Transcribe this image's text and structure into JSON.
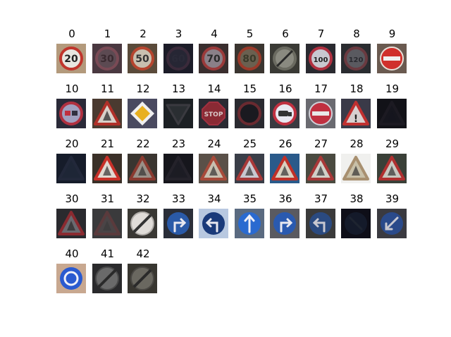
{
  "labels": [
    "0",
    "1",
    "2",
    "3",
    "4",
    "5",
    "6",
    "7",
    "8",
    "9",
    "10",
    "11",
    "12",
    "13",
    "14",
    "15",
    "16",
    "17",
    "18",
    "19",
    "20",
    "21",
    "22",
    "23",
    "24",
    "25",
    "26",
    "27",
    "28",
    "29",
    "30",
    "31",
    "32",
    "33",
    "34",
    "35",
    "36",
    "37",
    "38",
    "39",
    "40",
    "41",
    "42"
  ],
  "thumbnails": [
    {
      "kind": "speed",
      "text": "20",
      "bg": "#b39a7c",
      "sign": "#e8e6e0",
      "ring": "#c0352c",
      "ink": "#222222"
    },
    {
      "kind": "speed",
      "text": "30",
      "bg": "#4a3840",
      "sign": "#5c4a52",
      "ring": "#7a4a55",
      "ink": "#3a2a30"
    },
    {
      "kind": "speed",
      "text": "50",
      "bg": "#5a4a3a",
      "sign": "#c8c0b0",
      "ring": "#b5452f",
      "ink": "#333333"
    },
    {
      "kind": "speed",
      "text": "60",
      "bg": "#1c1c28",
      "sign": "#262634",
      "ring": "#3a2a3a",
      "ink": "#2a2a38"
    },
    {
      "kind": "speed",
      "text": "70",
      "bg": "#3a2e2e",
      "sign": "#8a8088",
      "ring": "#9a3a3a",
      "ink": "#2a2a2a"
    },
    {
      "kind": "speed",
      "text": "80",
      "bg": "#3a3530",
      "sign": "#6a6050",
      "ring": "#9a3a2a",
      "ink": "#3a3a2a"
    },
    {
      "kind": "endspeed",
      "text": "",
      "bg": "#3a3a35",
      "sign": "#8a8a80",
      "ring": "#6a6a60",
      "ink": "#2a2a2a"
    },
    {
      "kind": "speed",
      "text": "100",
      "bg": "#2a2a30",
      "sign": "#c8c8d0",
      "ring": "#b03040",
      "ink": "#222222"
    },
    {
      "kind": "speed",
      "text": "120",
      "bg": "#2a2c30",
      "sign": "#5a5a60",
      "ring": "#6a3a40",
      "ink": "#2a2a30"
    },
    {
      "kind": "noentry",
      "text": "",
      "bg": "#6a5a50",
      "sign": "#d0302c",
      "ring": "#e8e0d8",
      "ink": "#f0f0f0"
    },
    {
      "kind": "nopass",
      "text": "",
      "bg": "#2a2a38",
      "sign": "#a0a0c0",
      "ring": "#b03040",
      "ink": "#303040"
    },
    {
      "kind": "tri",
      "text": "",
      "bg": "#4a3a30",
      "sign": "#d8d0c8",
      "ring": "#b03028",
      "ink": "#222222"
    },
    {
      "kind": "priority",
      "text": "",
      "bg": "#4a4a60",
      "sign": "#f0f0f0",
      "ring": "#e8b020",
      "ink": "#e8b020"
    },
    {
      "kind": "yield",
      "text": "",
      "bg": "#1c2024",
      "sign": "#2a2e32",
      "ring": "#3a3a40",
      "ink": "#2a2e32"
    },
    {
      "kind": "stop",
      "text": "STOP",
      "bg": "#2a2a32",
      "sign": "#8a2a34",
      "ring": "#a03040",
      "ink": "#d8c8c8"
    },
    {
      "kind": "novehicle",
      "text": "",
      "bg": "#2a2a30",
      "sign": "#1a1a20",
      "ring": "#6a2a30",
      "ink": "#1a1a20"
    },
    {
      "kind": "truck",
      "text": "",
      "bg": "#3a3a40",
      "sign": "#e8e8f0",
      "ring": "#c03040",
      "ink": "#333333"
    },
    {
      "kind": "noentry",
      "text": "",
      "bg": "#6a6a70",
      "sign": "#c03040",
      "ring": "#d0d0d8",
      "ink": "#e8e8e8"
    },
    {
      "kind": "tri",
      "text": "!",
      "bg": "#3a3a48",
      "sign": "#d8d0d0",
      "ring": "#c03030",
      "ink": "#222222"
    },
    {
      "kind": "tri",
      "text": "",
      "bg": "#121218",
      "sign": "#16161e",
      "ring": "#1c1a22",
      "ink": "#16161e"
    },
    {
      "kind": "tri",
      "text": "",
      "bg": "#161c2a",
      "sign": "#1e2636",
      "ring": "#22283a",
      "ink": "#1e2636"
    },
    {
      "kind": "tri",
      "text": "",
      "bg": "#3a3028",
      "sign": "#e0d8d0",
      "ring": "#c83028",
      "ink": "#333333"
    },
    {
      "kind": "tri",
      "text": "",
      "bg": "#3a3530",
      "sign": "#9a9088",
      "ring": "#8a3a30",
      "ink": "#333333"
    },
    {
      "kind": "tri",
      "text": "",
      "bg": "#16161c",
      "sign": "#1c1c24",
      "ring": "#24222a",
      "ink": "#1c1c24"
    },
    {
      "kind": "tri",
      "text": "",
      "bg": "#5a5048",
      "sign": "#c8c0b0",
      "ring": "#a84a3a",
      "ink": "#333333"
    },
    {
      "kind": "tri",
      "text": "",
      "bg": "#3a3e48",
      "sign": "#c8c8d0",
      "ring": "#a83838",
      "ink": "#333333"
    },
    {
      "kind": "tri",
      "text": "",
      "bg": "#2a5a8a",
      "sign": "#d8d0c0",
      "ring": "#c03028",
      "ink": "#333333"
    },
    {
      "kind": "tri",
      "text": "",
      "bg": "#4a4a40",
      "sign": "#d0d0c8",
      "ring": "#a83838",
      "ink": "#333333"
    },
    {
      "kind": "tri",
      "text": "",
      "bg": "#f0f0ee",
      "sign": "#c8c0a8",
      "ring": "#a89070",
      "ink": "#333333"
    },
    {
      "kind": "tri",
      "text": "",
      "bg": "#3a4038",
      "sign": "#c8c8c0",
      "ring": "#b03030",
      "ink": "#333333"
    },
    {
      "kind": "tri",
      "text": "",
      "bg": "#2a2a2e",
      "sign": "#6a6a70",
      "ring": "#8a2a30",
      "ink": "#2a2a2a"
    },
    {
      "kind": "tri",
      "text": "",
      "bg": "#3a3a3c",
      "sign": "#4a4446",
      "ring": "#5a3a3c",
      "ink": "#3a3a3a"
    },
    {
      "kind": "endall",
      "text": "",
      "bg": "#3a3834",
      "sign": "#e0dcd8",
      "ring": "#b0aca8",
      "ink": "#333333"
    },
    {
      "kind": "blue",
      "text": "right",
      "bg": "#2a2e38",
      "sign": "#2a5aa8",
      "ring": "#2a5aa8",
      "ink": "#e8e8f0"
    },
    {
      "kind": "blue",
      "text": "left",
      "bg": "#b8c8e0",
      "sign": "#1a3a7a",
      "ring": "#1a3a7a",
      "ink": "#e8e8f0"
    },
    {
      "kind": "blue",
      "text": "up",
      "bg": "#5a6a80",
      "sign": "#2a6ad0",
      "ring": "#2a6ad0",
      "ink": "#f0f0f8"
    },
    {
      "kind": "blue",
      "text": "upright",
      "bg": "#5a5a60",
      "sign": "#2a5ab0",
      "ring": "#2a5ab0",
      "ink": "#e8e8f0"
    },
    {
      "kind": "blue",
      "text": "upleft",
      "bg": "#3a3a3a",
      "sign": "#2a4a80",
      "ring": "#2a4a80",
      "ink": "#c8c8d0"
    },
    {
      "kind": "blue",
      "text": "keepright",
      "bg": "#0e0e18",
      "sign": "#141a2a",
      "ring": "#141a2a",
      "ink": "#1e2430"
    },
    {
      "kind": "blue",
      "text": "keepleft",
      "bg": "#3a3a40",
      "sign": "#2a4a8a",
      "ring": "#2a4a8a",
      "ink": "#c8c8d0"
    },
    {
      "kind": "round",
      "text": "",
      "bg": "#c8a890",
      "sign": "#2a5ad0",
      "ring": "#2a5ad0",
      "ink": "#f0f0f8"
    },
    {
      "kind": "endall",
      "text": "",
      "bg": "#2a2a2c",
      "sign": "#6a6a6a",
      "ring": "#4a4a4a",
      "ink": "#2a2a2a"
    },
    {
      "kind": "endall",
      "text": "",
      "bg": "#383630",
      "sign": "#6a6860",
      "ring": "#4a4844",
      "ink": "#2a2a2a"
    }
  ]
}
